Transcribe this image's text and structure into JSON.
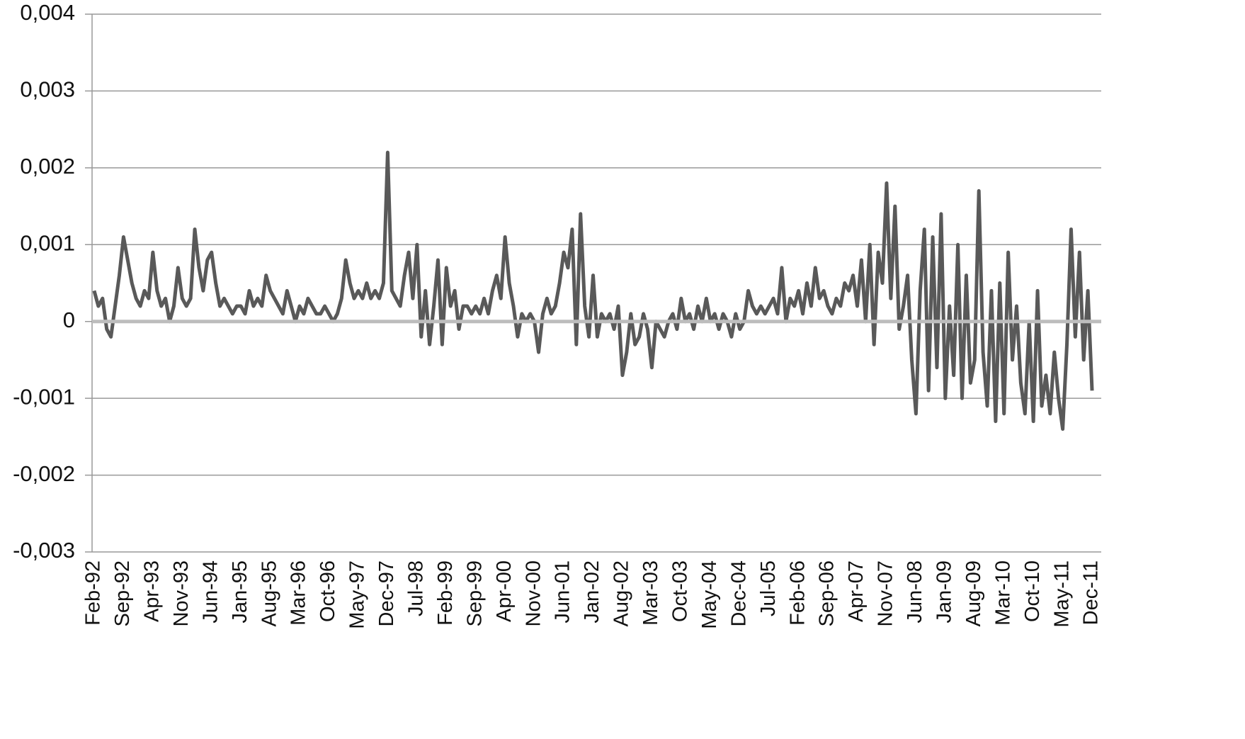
{
  "chart_data": {
    "type": "line",
    "color": "#595959",
    "grid": true,
    "ylim": [
      -0.003,
      0.004
    ],
    "yticks": [
      {
        "value": -0.003,
        "label": "-0,003"
      },
      {
        "value": -0.002,
        "label": "-0,002"
      },
      {
        "value": -0.001,
        "label": "-0,001"
      },
      0,
      {
        "value": 0.001,
        "label": "0,001"
      },
      {
        "value": 0.002,
        "label": "0,002"
      },
      {
        "value": 0.003,
        "label": "0,003"
      },
      {
        "value": 0.004,
        "label": "0,004"
      }
    ],
    "categories": [
      "Feb-92",
      null,
      null,
      null,
      null,
      null,
      null,
      "Sep-92",
      null,
      null,
      null,
      null,
      null,
      null,
      "Apr-93",
      null,
      null,
      null,
      null,
      null,
      null,
      "Nov-93",
      null,
      null,
      null,
      null,
      null,
      null,
      "Jun-94",
      null,
      null,
      null,
      null,
      null,
      null,
      "Jan-95",
      null,
      null,
      null,
      null,
      null,
      null,
      "Aug-95",
      null,
      null,
      null,
      null,
      null,
      null,
      "Mar-96",
      null,
      null,
      null,
      null,
      null,
      null,
      "Oct-96",
      null,
      null,
      null,
      null,
      null,
      null,
      "May-97",
      null,
      null,
      null,
      null,
      null,
      null,
      "Dec-97",
      null,
      null,
      null,
      null,
      null,
      null,
      "Jul-98",
      null,
      null,
      null,
      null,
      null,
      null,
      "Feb-99",
      null,
      null,
      null,
      null,
      null,
      null,
      "Sep-99",
      null,
      null,
      null,
      null,
      null,
      null,
      "Apr-00",
      null,
      null,
      null,
      null,
      null,
      null,
      "Nov-00",
      null,
      null,
      null,
      null,
      null,
      null,
      "Jun-01",
      null,
      null,
      null,
      null,
      null,
      null,
      "Jan-02",
      null,
      null,
      null,
      null,
      null,
      null,
      "Aug-02",
      null,
      null,
      null,
      null,
      null,
      null,
      "Mar-03",
      null,
      null,
      null,
      null,
      null,
      null,
      "Oct-03",
      null,
      null,
      null,
      null,
      null,
      null,
      "May-04",
      null,
      null,
      null,
      null,
      null,
      null,
      "Dec-04",
      null,
      null,
      null,
      null,
      null,
      null,
      "Jul-05",
      null,
      null,
      null,
      null,
      null,
      null,
      "Feb-06",
      null,
      null,
      null,
      null,
      null,
      null,
      "Sep-06",
      null,
      null,
      null,
      null,
      null,
      null,
      "Apr-07",
      null,
      null,
      null,
      null,
      null,
      null,
      "Nov-07",
      null,
      null,
      null,
      null,
      null,
      null,
      "Jun-08",
      null,
      null,
      null,
      null,
      null,
      null,
      "Jan-09",
      null,
      null,
      null,
      null,
      null,
      null,
      "Aug-09",
      null,
      null,
      null,
      null,
      null,
      null,
      "Mar-10",
      null,
      null,
      null,
      null,
      null,
      null,
      "Oct-10",
      null,
      null,
      null,
      null,
      null,
      null,
      "May-11",
      null,
      null,
      null,
      null,
      null,
      null,
      "Dec-11"
    ],
    "values": [
      0.0004,
      0.0002,
      0.0003,
      -0.0001,
      -0.0002,
      0.0002,
      0.0006,
      0.0011,
      0.0008,
      0.0005,
      0.0003,
      0.0002,
      0.0004,
      0.0003,
      0.0009,
      0.0004,
      0.0002,
      0.0003,
      0,
      0.0002,
      0.0007,
      0.0003,
      0.0002,
      0.0003,
      0.0012,
      0.0007,
      0.0004,
      0.0008,
      0.0009,
      0.0005,
      0.0002,
      0.0003,
      0.0002,
      0.0001,
      0.0002,
      0.0002,
      0.0001,
      0.0004,
      0.0002,
      0.0003,
      0.0002,
      0.0006,
      0.0004,
      0.0003,
      0.0002,
      0.0001,
      0.0004,
      0.0002,
      0,
      0.0002,
      0.0001,
      0.0003,
      0.0002,
      0.0001,
      0.0001,
      0.0002,
      0.0001,
      0,
      0.0001,
      0.0003,
      0.0008,
      0.0005,
      0.0003,
      0.0004,
      0.0003,
      0.0005,
      0.0003,
      0.0004,
      0.0003,
      0.0005,
      0.0022,
      0.0004,
      0.0003,
      0.0002,
      0.0006,
      0.0009,
      0.0003,
      0.001,
      -0.0002,
      0.0004,
      -0.0003,
      0.0002,
      0.0008,
      -0.0003,
      0.0007,
      0.0002,
      0.0004,
      -0.0001,
      0.0002,
      0.0002,
      0.0001,
      0.0002,
      0.0001,
      0.0003,
      0.0001,
      0.0004,
      0.0006,
      0.0003,
      0.0011,
      0.0005,
      0.0002,
      -0.0002,
      0.0001,
      0,
      0.0001,
      0,
      -0.0004,
      0.0001,
      0.0003,
      0.0001,
      0.0002,
      0.0005,
      0.0009,
      0.0007,
      0.0012,
      -0.0003,
      0.0014,
      0.0002,
      -0.0002,
      0.0006,
      -0.0002,
      0.0001,
      0,
      0.0001,
      -0.0001,
      0.0002,
      -0.0007,
      -0.0004,
      0.0001,
      -0.0003,
      -0.0002,
      0.0001,
      -0.0001,
      -0.0006,
      0,
      -0.0001,
      -0.0002,
      0,
      0.0001,
      -0.0001,
      0.0003,
      0,
      0.0001,
      -0.0001,
      0.0002,
      0,
      0.0003,
      0,
      0.0001,
      -0.0001,
      0.0001,
      0,
      -0.0002,
      0.0001,
      -0.0001,
      0,
      0.0004,
      0.0002,
      0.0001,
      0.0002,
      0.0001,
      0.0002,
      0.0003,
      0.0001,
      0.0007,
      0,
      0.0003,
      0.0002,
      0.0004,
      0.0001,
      0.0005,
      0.0002,
      0.0007,
      0.0003,
      0.0004,
      0.0002,
      0.0001,
      0.0003,
      0.0002,
      0.0005,
      0.0004,
      0.0006,
      0.0002,
      0.0008,
      0,
      0.001,
      -0.0003,
      0.0009,
      0.0005,
      0.0018,
      0.0003,
      0.0015,
      -0.0001,
      0.0002,
      0.0006,
      -0.0005,
      -0.0012,
      0.0004,
      0.0012,
      -0.0009,
      0.0011,
      -0.0006,
      0.0014,
      -0.001,
      0.0002,
      -0.0007,
      0.001,
      -0.001,
      0.0006,
      -0.0008,
      -0.0005,
      0.0017,
      -0.0004,
      -0.0011,
      0.0004,
      -0.0013,
      0.0005,
      -0.0012,
      0.0009,
      -0.0005,
      0.0002,
      -0.0008,
      -0.0012,
      0,
      -0.0013,
      0.0004,
      -0.0011,
      -0.0007,
      -0.0012,
      -0.0004,
      -0.001,
      -0.0014,
      -0.0003,
      0.0012,
      -0.0002,
      0.0009,
      -0.0005,
      0.0004,
      -0.0009
    ]
  }
}
